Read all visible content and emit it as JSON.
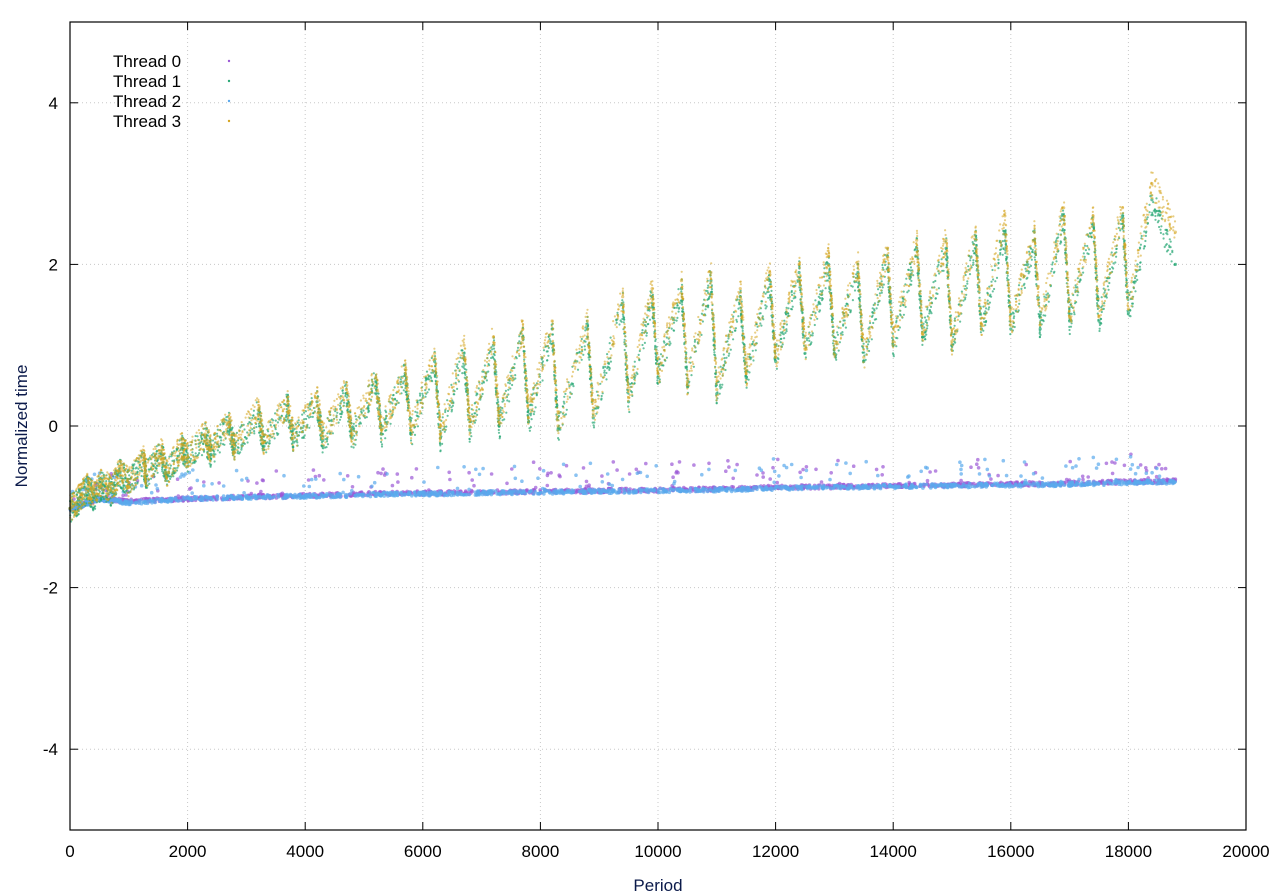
{
  "chart_data": {
    "type": "scatter",
    "title": "",
    "xlabel": "Period",
    "ylabel": "Normalized time",
    "xlim": [
      0,
      20000
    ],
    "ylim": [
      -5,
      5
    ],
    "xticks": [
      0,
      2000,
      4000,
      6000,
      8000,
      10000,
      12000,
      14000,
      16000,
      18000,
      20000
    ],
    "yticks": [
      -4,
      -2,
      0,
      2,
      4
    ],
    "xtick_labels": [
      "0",
      "2000",
      "4000",
      "6000",
      "8000",
      "10000",
      "12000",
      "14000",
      "16000",
      "18000",
      "20000"
    ],
    "ytick_labels": [
      "-4",
      "-2",
      "0",
      "2",
      "4"
    ],
    "grid": true,
    "legend_position": "top-left",
    "series": [
      {
        "name": "Thread 0",
        "color": "#9b59d6",
        "points": [
          [
            0,
            -1.03
          ],
          [
            500,
            -0.9
          ],
          [
            1000,
            -0.93
          ],
          [
            2000,
            -0.9
          ],
          [
            3000,
            -0.88
          ],
          [
            4000,
            -0.86
          ],
          [
            5000,
            -0.84
          ],
          [
            6000,
            -0.83
          ],
          [
            7000,
            -0.82
          ],
          [
            8000,
            -0.81
          ],
          [
            9000,
            -0.8
          ],
          [
            10000,
            -0.79
          ],
          [
            11000,
            -0.78
          ],
          [
            12000,
            -0.76
          ],
          [
            13000,
            -0.75
          ],
          [
            14000,
            -0.74
          ],
          [
            15000,
            -0.73
          ],
          [
            16000,
            -0.72
          ],
          [
            17000,
            -0.71
          ],
          [
            18000,
            -0.69
          ],
          [
            18800,
            -0.68
          ]
        ]
      },
      {
        "name": "Thread 1",
        "color": "#2aa876",
        "points": [
          [
            0,
            -1.02
          ],
          [
            150,
            -0.92
          ],
          [
            300,
            -0.78
          ],
          [
            400,
            -0.88
          ],
          [
            550,
            -0.72
          ],
          [
            700,
            -0.82
          ],
          [
            850,
            -0.58
          ],
          [
            1000,
            -0.72
          ],
          [
            1250,
            -0.46
          ],
          [
            1300,
            -0.62
          ],
          [
            1550,
            -0.34
          ],
          [
            1650,
            -0.6
          ],
          [
            1900,
            -0.28
          ],
          [
            2000,
            -0.4
          ],
          [
            2300,
            -0.14
          ],
          [
            2400,
            -0.35
          ],
          [
            2700,
            0.02
          ],
          [
            2800,
            -0.28
          ],
          [
            3200,
            0.15
          ],
          [
            3300,
            -0.25
          ],
          [
            3700,
            0.25
          ],
          [
            3800,
            -0.2
          ],
          [
            4200,
            0.3
          ],
          [
            4300,
            -0.18
          ],
          [
            4700,
            0.4
          ],
          [
            4800,
            -0.15
          ],
          [
            5200,
            0.55
          ],
          [
            5300,
            -0.1
          ],
          [
            5700,
            0.65
          ],
          [
            5800,
            -0.1
          ],
          [
            6200,
            0.8
          ],
          [
            6300,
            -0.15
          ],
          [
            6700,
            0.9
          ],
          [
            6800,
            -0.05
          ],
          [
            7200,
            1.0
          ],
          [
            7300,
            0.0
          ],
          [
            7700,
            1.1
          ],
          [
            7800,
            0.05
          ],
          [
            8200,
            1.2
          ],
          [
            8300,
            -0.05
          ],
          [
            8800,
            1.2
          ],
          [
            8900,
            0.1
          ],
          [
            9400,
            1.5
          ],
          [
            9500,
            0.3
          ],
          [
            9900,
            1.6
          ],
          [
            10000,
            0.6
          ],
          [
            10400,
            1.7
          ],
          [
            10500,
            0.5
          ],
          [
            10900,
            1.8
          ],
          [
            11000,
            0.4
          ],
          [
            11400,
            1.6
          ],
          [
            11500,
            0.6
          ],
          [
            11900,
            1.8
          ],
          [
            12000,
            0.8
          ],
          [
            12400,
            1.9
          ],
          [
            12500,
            0.9
          ],
          [
            12900,
            2.0
          ],
          [
            13000,
            0.9
          ],
          [
            13400,
            1.9
          ],
          [
            13500,
            0.8
          ],
          [
            13900,
            2.1
          ],
          [
            14000,
            1.0
          ],
          [
            14400,
            2.2
          ],
          [
            14500,
            1.1
          ],
          [
            14900,
            2.2
          ],
          [
            15000,
            1.0
          ],
          [
            15400,
            2.3
          ],
          [
            15500,
            1.2
          ],
          [
            15900,
            2.4
          ],
          [
            16000,
            1.2
          ],
          [
            16400,
            2.3
          ],
          [
            16500,
            1.2
          ],
          [
            16900,
            2.6
          ],
          [
            17000,
            1.3
          ],
          [
            17400,
            2.5
          ],
          [
            17500,
            1.3
          ],
          [
            17900,
            2.6
          ],
          [
            18000,
            1.4
          ],
          [
            18400,
            2.8
          ],
          [
            18800,
            2.0
          ]
        ]
      },
      {
        "name": "Thread 2",
        "color": "#5aa9ec",
        "points": [
          [
            0,
            -1.03
          ],
          [
            500,
            -0.9
          ],
          [
            1000,
            -0.95
          ],
          [
            2000,
            -0.9
          ],
          [
            3000,
            -0.88
          ],
          [
            4000,
            -0.87
          ],
          [
            5000,
            -0.85
          ],
          [
            6000,
            -0.84
          ],
          [
            7000,
            -0.83
          ],
          [
            8000,
            -0.82
          ],
          [
            9000,
            -0.81
          ],
          [
            10000,
            -0.8
          ],
          [
            11000,
            -0.79
          ],
          [
            12000,
            -0.77
          ],
          [
            13000,
            -0.76
          ],
          [
            14000,
            -0.75
          ],
          [
            15000,
            -0.74
          ],
          [
            16000,
            -0.73
          ],
          [
            17000,
            -0.72
          ],
          [
            18000,
            -0.7
          ],
          [
            18800,
            -0.69
          ]
        ]
      },
      {
        "name": "Thread 3",
        "color": "#d6a520",
        "points": [
          [
            0,
            -1.02
          ],
          [
            150,
            -0.9
          ],
          [
            300,
            -0.75
          ],
          [
            400,
            -0.86
          ],
          [
            550,
            -0.68
          ],
          [
            700,
            -0.8
          ],
          [
            850,
            -0.55
          ],
          [
            1000,
            -0.7
          ],
          [
            1250,
            -0.42
          ],
          [
            1300,
            -0.6
          ],
          [
            1550,
            -0.3
          ],
          [
            1650,
            -0.58
          ],
          [
            1900,
            -0.25
          ],
          [
            2000,
            -0.38
          ],
          [
            2300,
            -0.1
          ],
          [
            2400,
            -0.3
          ],
          [
            2700,
            0.05
          ],
          [
            2800,
            -0.25
          ],
          [
            3200,
            0.2
          ],
          [
            3300,
            -0.2
          ],
          [
            3700,
            0.3
          ],
          [
            3800,
            -0.15
          ],
          [
            4200,
            0.35
          ],
          [
            4300,
            -0.15
          ],
          [
            4700,
            0.45
          ],
          [
            4800,
            -0.1
          ],
          [
            5200,
            0.6
          ],
          [
            5300,
            -0.05
          ],
          [
            5700,
            0.7
          ],
          [
            5800,
            -0.05
          ],
          [
            6200,
            0.9
          ],
          [
            6300,
            -0.1
          ],
          [
            6700,
            1.0
          ],
          [
            6800,
            0.0
          ],
          [
            7200,
            1.1
          ],
          [
            7300,
            0.05
          ],
          [
            7700,
            1.2
          ],
          [
            7800,
            0.1
          ],
          [
            8200,
            1.3
          ],
          [
            8300,
            0.0
          ],
          [
            8800,
            1.3
          ],
          [
            8900,
            0.15
          ],
          [
            9400,
            1.6
          ],
          [
            9500,
            0.35
          ],
          [
            9900,
            1.7
          ],
          [
            10000,
            0.65
          ],
          [
            10400,
            1.8
          ],
          [
            10500,
            0.55
          ],
          [
            10900,
            1.9
          ],
          [
            11000,
            0.45
          ],
          [
            11400,
            1.7
          ],
          [
            11500,
            0.65
          ],
          [
            11900,
            1.9
          ],
          [
            12000,
            0.85
          ],
          [
            12400,
            2.0
          ],
          [
            12500,
            0.95
          ],
          [
            12900,
            2.1
          ],
          [
            13000,
            0.95
          ],
          [
            13400,
            2.0
          ],
          [
            13500,
            0.85
          ],
          [
            13900,
            2.2
          ],
          [
            14000,
            1.05
          ],
          [
            14400,
            2.3
          ],
          [
            14500,
            1.15
          ],
          [
            14900,
            2.3
          ],
          [
            15000,
            1.05
          ],
          [
            15400,
            2.4
          ],
          [
            15500,
            1.25
          ],
          [
            15900,
            2.6
          ],
          [
            16000,
            1.25
          ],
          [
            16400,
            2.4
          ],
          [
            16500,
            1.25
          ],
          [
            16900,
            2.7
          ],
          [
            17000,
            1.35
          ],
          [
            17400,
            2.6
          ],
          [
            17500,
            1.35
          ],
          [
            17900,
            2.7
          ],
          [
            18000,
            1.45
          ],
          [
            18400,
            3.0
          ],
          [
            18800,
            2.4
          ]
        ]
      }
    ]
  }
}
